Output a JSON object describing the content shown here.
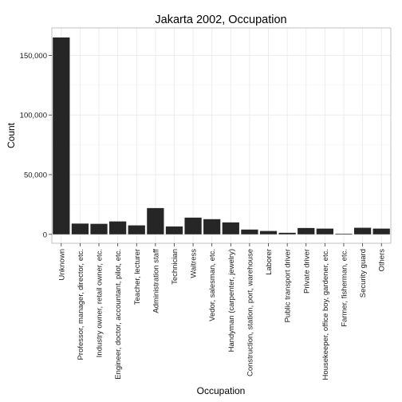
{
  "chart_data": {
    "type": "bar",
    "title": "Jakarta 2002, Occupation",
    "xlabel": "Occupation",
    "ylabel": "Count",
    "ylim": [
      -7500,
      173000
    ],
    "yticks": [
      0,
      50000,
      100000,
      150000
    ],
    "ytick_labels": [
      "0",
      "50,000",
      "100,000",
      "150,000"
    ],
    "grid": true,
    "categories": [
      "Unknown",
      "Professor, manager, director, etc.",
      "Industry owner, retail owner, etc.",
      "Engineer, doctor, accountant, pilot, etc.",
      "Teacher, lecturer",
      "Administration staff",
      "Technician",
      "Waitress",
      "Vedor, salesman, etc.",
      "Handyman (carpenter, jewelry)",
      "Construction, station, port, warehouse",
      "Laborer",
      "Public transport driver",
      "Private driver",
      "Housekeeper, office boy, gardener, etc.",
      "Farmer, fisherman, etc.",
      "Security guard",
      "Others"
    ],
    "values": [
      165000,
      9000,
      8800,
      10800,
      7500,
      22000,
      6600,
      14000,
      12700,
      10000,
      4000,
      2800,
      1300,
      5300,
      4800,
      500,
      5500,
      4800
    ],
    "colors": {
      "bar": "#262626",
      "panel_bg": "#ffffff",
      "grid": "#ebebeb"
    }
  }
}
